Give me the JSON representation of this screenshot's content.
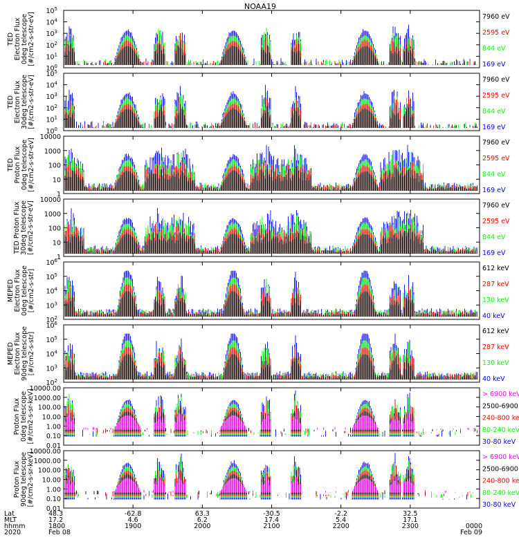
{
  "title": "NOAA19",
  "colors": {
    "black": "#000000",
    "red": "#ff0000",
    "green": "#00ff00",
    "blue": "#0000ff",
    "magenta": "#ff00ff"
  },
  "chart_data": [
    {
      "type": "line",
      "ylabel": [
        "TED",
        "Electron Flux",
        "0deg telescope",
        "[#/cm2-s-str-eV]"
      ],
      "scale": "log",
      "yticks": [
        {
          "label": "10",
          "sup": "0"
        },
        {
          "label": "10",
          "sup": "1"
        },
        {
          "label": "10",
          "sup": "2"
        },
        {
          "label": "10",
          "sup": "3"
        },
        {
          "label": "10",
          "sup": "4"
        },
        {
          "label": "10",
          "sup": "5"
        }
      ],
      "ylim": [
        1,
        100000
      ],
      "legend": [
        {
          "label": "7960 eV",
          "color": "black"
        },
        {
          "label": "2595 eV",
          "color": "red"
        },
        {
          "label": "844 eV",
          "color": "green"
        },
        {
          "label": "169 eV",
          "color": "blue"
        }
      ]
    },
    {
      "type": "line",
      "ylabel": [
        "TED",
        "Electron Flux",
        "30deg telescope",
        "[#/cm2-s-str-eV]"
      ],
      "scale": "log",
      "yticks": [
        {
          "label": "10",
          "sup": "0"
        },
        {
          "label": "10",
          "sup": "1"
        },
        {
          "label": "10",
          "sup": "2"
        },
        {
          "label": "10",
          "sup": "3"
        },
        {
          "label": "10",
          "sup": "4"
        },
        {
          "label": "10",
          "sup": "5"
        }
      ],
      "ylim": [
        1,
        100000
      ],
      "legend": [
        {
          "label": "7960 eV",
          "color": "black"
        },
        {
          "label": "2595 eV",
          "color": "red"
        },
        {
          "label": "844 eV",
          "color": "green"
        },
        {
          "label": "169 eV",
          "color": "blue"
        }
      ]
    },
    {
      "type": "line",
      "ylabel": [
        "TED",
        "Proton Flux",
        "0deg telescope",
        "[#/cm2-s-str-eV]"
      ],
      "scale": "log",
      "yticks": [
        {
          "label": "1"
        },
        {
          "label": "10"
        },
        {
          "label": "100"
        },
        {
          "label": "1000"
        },
        {
          "label": "10000"
        }
      ],
      "ylim": [
        1,
        10000
      ],
      "legend": [
        {
          "label": "7960 eV",
          "color": "black"
        },
        {
          "label": "2595 eV",
          "color": "red"
        },
        {
          "label": "844 eV",
          "color": "green"
        },
        {
          "label": "169 eV",
          "color": "blue"
        }
      ]
    },
    {
      "type": "line",
      "ylabel": [
        "TED Proton Flux",
        "30deg telescope",
        "[#/cm2-s-str-eV]"
      ],
      "scale": "log",
      "yticks": [
        {
          "label": "1"
        },
        {
          "label": "10"
        },
        {
          "label": "100"
        },
        {
          "label": "1000"
        },
        {
          "label": "10000"
        }
      ],
      "ylim": [
        1,
        10000
      ],
      "legend": [
        {
          "label": "7960 eV",
          "color": "black"
        },
        {
          "label": "2595 eV",
          "color": "red"
        },
        {
          "label": "844 eV",
          "color": "green"
        },
        {
          "label": "169 eV",
          "color": "blue"
        }
      ]
    },
    {
      "type": "line",
      "ylabel": [
        "MEPED",
        "Electron Flux",
        "0deg telescope",
        "[#/cm2-s-str]"
      ],
      "scale": "log",
      "yticks": [
        {
          "label": "10",
          "sup": "2"
        },
        {
          "label": "10",
          "sup": "3"
        },
        {
          "label": "10",
          "sup": "4"
        },
        {
          "label": "10",
          "sup": "5"
        },
        {
          "label": "10",
          "sup": "6"
        }
      ],
      "ylim": [
        100,
        1000000
      ],
      "legend": [
        {
          "label": "612 keV",
          "color": "black"
        },
        {
          "label": "287 keV",
          "color": "red"
        },
        {
          "label": "130 keV",
          "color": "green"
        },
        {
          "label": "40 keV",
          "color": "blue"
        }
      ]
    },
    {
      "type": "line",
      "ylabel": [
        "MEPED",
        "Electron Flux",
        "90deg telescope",
        "[#/cm2-s-str]"
      ],
      "scale": "log",
      "yticks": [
        {
          "label": "10",
          "sup": "2"
        },
        {
          "label": "10",
          "sup": "3"
        },
        {
          "label": "10",
          "sup": "4"
        },
        {
          "label": "10",
          "sup": "5"
        },
        {
          "label": "10",
          "sup": "6"
        }
      ],
      "ylim": [
        100,
        1000000
      ],
      "legend": [
        {
          "label": "612 keV",
          "color": "black"
        },
        {
          "label": "287 keV",
          "color": "red"
        },
        {
          "label": "130 keV",
          "color": "green"
        },
        {
          "label": "40 keV",
          "color": "blue"
        }
      ]
    },
    {
      "type": "line",
      "ylabel": [
        "Proton Flux",
        "0deg telescope",
        "[#/cm2-s-sr-keV]"
      ],
      "scale": "log",
      "yticks": [
        {
          "label": "0.01"
        },
        {
          "label": "0.10"
        },
        {
          "label": "1.00"
        },
        {
          "label": "10.00"
        },
        {
          "label": "100.00"
        },
        {
          "label": "1000.00"
        },
        {
          "label": "10000.00"
        }
      ],
      "ylim": [
        0.01,
        10000
      ],
      "legend": [
        {
          "label": "> 6900 keV",
          "color": "magenta"
        },
        {
          "label": "2500-6900",
          "color": "black"
        },
        {
          "label": "240-800 ke",
          "color": "red"
        },
        {
          "label": "80-240 keV",
          "color": "green"
        },
        {
          "label": "30-80 keV",
          "color": "blue"
        }
      ]
    },
    {
      "type": "line",
      "ylabel": [
        "Proton Flux",
        "90deg telescope",
        "[#/cm2-s-sr-keV]"
      ],
      "scale": "log",
      "yticks": [
        {
          "label": "0.01"
        },
        {
          "label": "0.10"
        },
        {
          "label": "1.00"
        },
        {
          "label": "10.00"
        },
        {
          "label": "100.00"
        },
        {
          "label": "1000.00"
        },
        {
          "label": "10000.00"
        }
      ],
      "ylim": [
        0.01,
        10000
      ],
      "legend": [
        {
          "label": "> 6900 keV",
          "color": "magenta"
        },
        {
          "label": "2500-6900",
          "color": "black"
        },
        {
          "label": "240-800 ke",
          "color": "red"
        },
        {
          "label": "80-240 keV",
          "color": "green"
        },
        {
          "label": "30-80 keV",
          "color": "blue"
        }
      ]
    }
  ],
  "xaxis": {
    "row_labels": [
      "Lat",
      "MLT",
      "hhmm",
      "2020"
    ],
    "ticks": [
      {
        "time": "1800",
        "lat": "48.3",
        "mlt": "17.2",
        "date": "Feb 08"
      },
      {
        "time": "1900",
        "lat": "-62.8",
        "mlt": "4.6",
        "date": ""
      },
      {
        "time": "2000",
        "lat": "63.3",
        "mlt": "6.2",
        "date": ""
      },
      {
        "time": "2100",
        "lat": "-30.5",
        "mlt": "17.4",
        "date": ""
      },
      {
        "time": "2200",
        "lat": "-2.2",
        "mlt": "5.4",
        "date": ""
      },
      {
        "time": "2300",
        "lat": "32.5",
        "mlt": "17.1",
        "date": ""
      },
      {
        "time": "0000",
        "lat": "",
        "mlt": "",
        "date": "Feb 09"
      }
    ]
  },
  "passes": [
    {
      "type": "burst",
      "center_hours": 0.08
    },
    {
      "type": "hump",
      "center_hours": 0.92
    },
    {
      "type": "burst",
      "center_hours": 1.38
    },
    {
      "type": "burst",
      "center_hours": 1.68
    },
    {
      "type": "hump",
      "center_hours": 2.45
    },
    {
      "type": "burst",
      "center_hours": 2.92
    },
    {
      "type": "burst",
      "center_hours": 3.35
    },
    {
      "type": "hump",
      "center_hours": 4.35
    },
    {
      "type": "burst",
      "center_hours": 4.78
    },
    {
      "type": "burst",
      "center_hours": 4.98
    }
  ]
}
